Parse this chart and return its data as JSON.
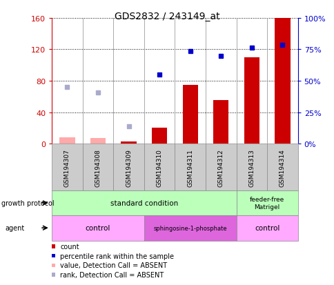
{
  "title": "GDS2832 / 243149_at",
  "samples": [
    "GSM194307",
    "GSM194308",
    "GSM194309",
    "GSM194310",
    "GSM194311",
    "GSM194312",
    "GSM194313",
    "GSM194314"
  ],
  "count_values": [
    null,
    null,
    3,
    20,
    75,
    55,
    110,
    160
  ],
  "count_absent": [
    8,
    7,
    null,
    null,
    null,
    null,
    null,
    null
  ],
  "percentile_values": [
    null,
    null,
    null,
    88,
    118,
    112,
    null,
    null
  ],
  "percentile_absent": [
    72,
    65,
    22,
    null,
    null,
    null,
    null,
    null
  ],
  "percentile_present_last2": [
    122,
    126
  ],
  "ylim_left": [
    0,
    160
  ],
  "ylim_right": [
    0,
    100
  ],
  "yticks_left": [
    0,
    40,
    80,
    120,
    160
  ],
  "yticks_right": [
    0,
    25,
    50,
    75,
    100
  ],
  "ytick_labels_left": [
    "0",
    "40",
    "80",
    "120",
    "160"
  ],
  "ytick_labels_right": [
    "0%",
    "25%",
    "50%",
    "75%",
    "100%"
  ],
  "bar_color": "#cc0000",
  "bar_absent_color": "#ffaaaa",
  "dot_color": "#0000cc",
  "dot_absent_color": "#aaaacc",
  "legend_items": [
    {
      "label": "count",
      "color": "#cc0000"
    },
    {
      "label": "percentile rank within the sample",
      "color": "#0000cc"
    },
    {
      "label": "value, Detection Call = ABSENT",
      "color": "#ffaaaa"
    },
    {
      "label": "rank, Detection Call = ABSENT",
      "color": "#aaaacc"
    }
  ]
}
